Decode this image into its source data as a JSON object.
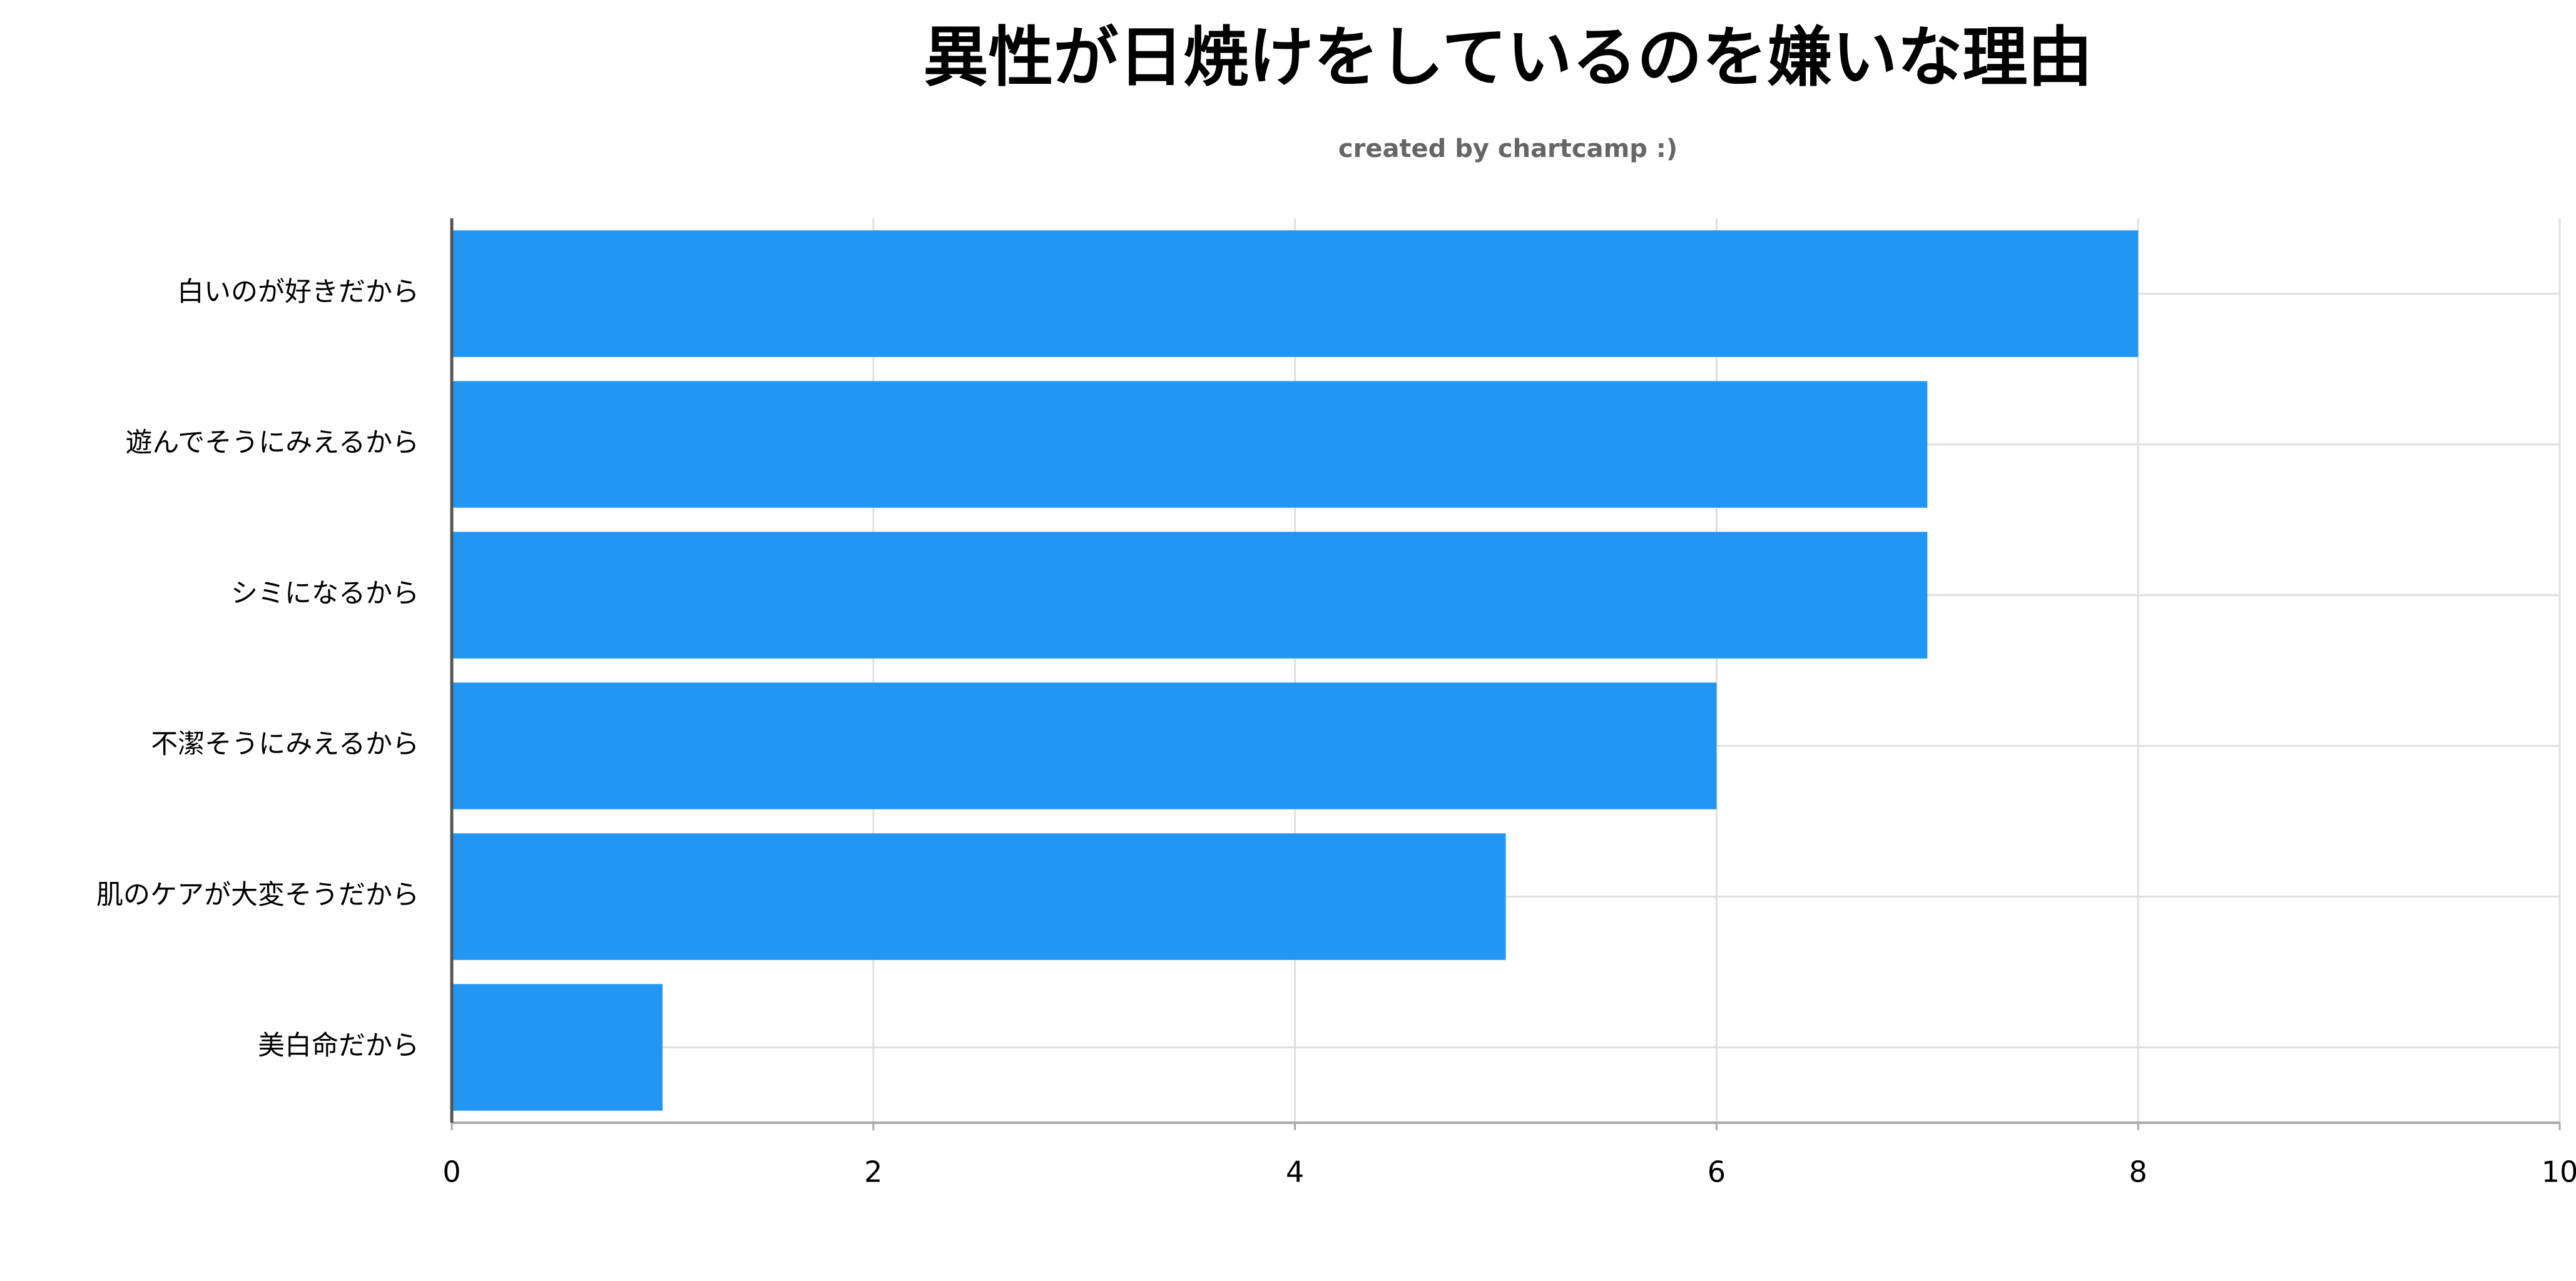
{
  "chart_data": {
    "type": "bar",
    "orientation": "horizontal",
    "title": "異性が日焼けをしているのを嫌いな理由",
    "subtitle": "created by chartcamp :)",
    "categories": [
      "白いのが好きだから",
      "遊んでそうにみえるから",
      "シミになるから",
      "不潔そうにみえるから",
      "肌のケアが大変そうだから",
      "美白命だから"
    ],
    "values": [
      8,
      7,
      7,
      6,
      5,
      1
    ],
    "color": "#2196f3",
    "xlim": [
      0,
      10
    ],
    "xticks": [
      0,
      2,
      4,
      6,
      8,
      10
    ],
    "grid": true
  }
}
